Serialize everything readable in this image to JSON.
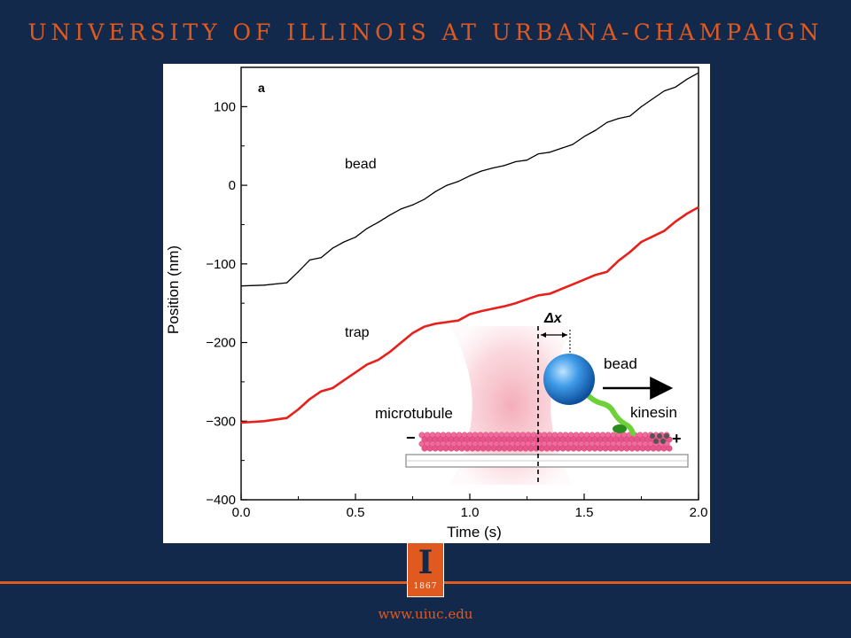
{
  "header": {
    "title": "UNIVERSITY OF ILLINOIS AT URBANA-CHAMPAIGN"
  },
  "footer": {
    "website": "www.uiuc.edu",
    "logo_year": "1867",
    "logo_letter": "I"
  },
  "colors": {
    "background": "#13294b",
    "accent": "#e05a1f",
    "bead_trace": "#000000",
    "trap_trace": "#e8201c"
  },
  "chart_data": {
    "type": "line",
    "panel_label": "a",
    "xlabel": "Time (s)",
    "ylabel": "Position (nm)",
    "xlim": [
      0.0,
      2.0
    ],
    "ylim": [
      -400,
      150
    ],
    "xticks": [
      0.0,
      0.5,
      1.0,
      1.5,
      2.0
    ],
    "xtick_labels": [
      "0.0",
      "0.5",
      "1.0",
      "1.5",
      "2.0"
    ],
    "yticks": [
      -400,
      -300,
      -200,
      -100,
      0,
      100
    ],
    "ytick_labels": [
      "−400",
      "−300",
      "−200",
      "−100",
      "0",
      "100"
    ],
    "series": [
      {
        "name": "bead",
        "x": [
          0.0,
          0.1,
          0.2,
          0.25,
          0.3,
          0.35,
          0.4,
          0.45,
          0.5,
          0.55,
          0.6,
          0.65,
          0.7,
          0.75,
          0.8,
          0.85,
          0.9,
          0.95,
          1.0,
          1.05,
          1.1,
          1.15,
          1.2,
          1.25,
          1.3,
          1.35,
          1.4,
          1.45,
          1.5,
          1.55,
          1.6,
          1.65,
          1.7,
          1.75,
          1.8,
          1.85,
          1.9,
          1.95,
          2.0
        ],
        "y": [
          -128,
          -127,
          -124,
          -110,
          -95,
          -92,
          -80,
          -72,
          -66,
          -55,
          -47,
          -38,
          -30,
          -25,
          -18,
          -8,
          0,
          5,
          12,
          18,
          22,
          25,
          30,
          32,
          40,
          42,
          47,
          52,
          62,
          70,
          80,
          85,
          88,
          100,
          110,
          120,
          125,
          135,
          143
        ]
      },
      {
        "name": "trap",
        "x": [
          0.0,
          0.1,
          0.2,
          0.25,
          0.3,
          0.35,
          0.4,
          0.45,
          0.5,
          0.55,
          0.6,
          0.65,
          0.7,
          0.75,
          0.8,
          0.85,
          0.9,
          0.95,
          1.0,
          1.05,
          1.1,
          1.15,
          1.2,
          1.25,
          1.3,
          1.35,
          1.4,
          1.45,
          1.5,
          1.55,
          1.6,
          1.65,
          1.7,
          1.75,
          1.8,
          1.85,
          1.9,
          1.95,
          2.0
        ],
        "y": [
          -302,
          -300,
          -296,
          -285,
          -272,
          -262,
          -258,
          -248,
          -238,
          -228,
          -222,
          -212,
          -200,
          -188,
          -180,
          -176,
          -174,
          -172,
          -164,
          -160,
          -157,
          -154,
          -150,
          -145,
          -140,
          -138,
          -132,
          -126,
          -120,
          -114,
          -110,
          -96,
          -85,
          -72,
          -65,
          -58,
          -46,
          -36,
          -28
        ]
      }
    ],
    "annotations": {
      "bead_label": "bead",
      "trap_label": "trap",
      "inset": {
        "delta_x": "Δx",
        "bead": "bead",
        "kinesin": "kinesin",
        "microtubule": "microtubule",
        "minus": "−",
        "plus": "+"
      }
    }
  }
}
